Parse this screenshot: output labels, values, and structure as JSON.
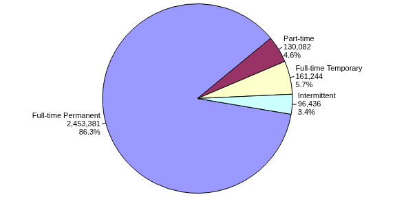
{
  "chart_data": {
    "type": "pie",
    "categories": [
      "Full-time Permanent",
      "Part-time",
      "Full-time Temporary",
      "Intermittent"
    ],
    "values": [
      2453381,
      130082,
      161244,
      96436
    ],
    "value_labels": [
      "2,453,381",
      "130,082",
      "161,244",
      "96,436"
    ],
    "percent_labels": [
      "86.3%",
      "4.6%",
      "5.7%",
      "3.4%"
    ],
    "colors": [
      "#9999ff",
      "#993366",
      "#ffffcc",
      "#ccffff"
    ],
    "data_labels": true
  }
}
